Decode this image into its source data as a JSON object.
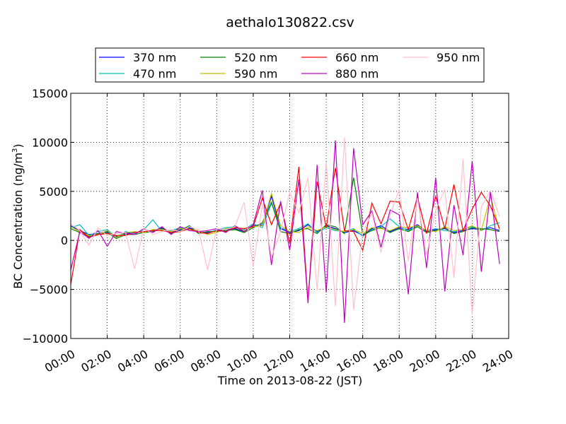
{
  "chart_data": {
    "type": "line",
    "title": "aethalo130822.csv",
    "xlabel": "Time on 2013-08-22 (JST)",
    "ylabel": "BC Concentration (ng/m",
    "ylabel_superscript": "3",
    "ylabel_suffix": ")",
    "xlim": [
      0,
      24
    ],
    "ylim": [
      -10000,
      15000
    ],
    "x_unit": "hours",
    "x_ticks": [
      0,
      2,
      4,
      6,
      8,
      10,
      12,
      14,
      16,
      18,
      20,
      22,
      24
    ],
    "x_tick_labels": [
      "00:00",
      "02:00",
      "04:00",
      "06:00",
      "08:00",
      "10:00",
      "12:00",
      "14:00",
      "16:00",
      "18:00",
      "20:00",
      "22:00",
      "24:00"
    ],
    "y_ticks": [
      -10000,
      -5000,
      0,
      5000,
      10000,
      15000
    ],
    "y_tick_labels": [
      "−10000",
      "−5000",
      "0",
      "5000",
      "10000",
      "15000"
    ],
    "grid": true,
    "legend_position": "top",
    "series": [
      {
        "name": "370 nm",
        "color": "#0000ff"
      },
      {
        "name": "470 nm",
        "color": "#00bfbf"
      },
      {
        "name": "520 nm",
        "color": "#008000"
      },
      {
        "name": "590 nm",
        "color": "#bfbf00"
      },
      {
        "name": "660 nm",
        "color": "#ff0000"
      },
      {
        "name": "880 nm",
        "color": "#bf00bf"
      },
      {
        "name": "950 nm",
        "color": "#ffc0cb"
      }
    ],
    "x": [
      0.0,
      0.5,
      1.0,
      1.5,
      2.0,
      2.5,
      3.0,
      3.5,
      4.0,
      4.5,
      5.0,
      5.5,
      6.0,
      6.5,
      7.0,
      7.5,
      8.0,
      8.5,
      9.0,
      9.5,
      10.0,
      10.5,
      11.0,
      11.5,
      12.0,
      12.5,
      13.0,
      13.5,
      14.0,
      14.5,
      15.0,
      15.5,
      16.0,
      16.5,
      17.0,
      17.5,
      18.0,
      18.5,
      19.0,
      19.5,
      20.0,
      20.5,
      21.0,
      21.5,
      22.0,
      22.5,
      23.0,
      23.5
    ],
    "series_values": [
      [
        1500,
        1000,
        600,
        700,
        900,
        400,
        700,
        800,
        900,
        1000,
        1200,
        800,
        1100,
        1300,
        900,
        800,
        1000,
        1100,
        1200,
        900,
        1500,
        1600,
        4500,
        1200,
        800,
        1000,
        1600,
        900,
        1500,
        1200,
        800,
        1000,
        500,
        1200,
        1500,
        900,
        1300,
        1100,
        1600,
        900,
        1100,
        1200,
        800,
        1000,
        1200,
        1100,
        1300,
        1000
      ],
      [
        1300,
        1600,
        500,
        900,
        1100,
        300,
        900,
        700,
        1100,
        2100,
        900,
        1000,
        1300,
        1200,
        800,
        700,
        1100,
        1300,
        1400,
        1100,
        1700,
        1300,
        3800,
        1300,
        900,
        1200,
        1700,
        800,
        1300,
        1000,
        900,
        1200,
        400,
        1100,
        1400,
        2200,
        1400,
        1000,
        1500,
        1000,
        1200,
        1000,
        900,
        1100,
        1400,
        1000,
        1500,
        1800
      ],
      [
        1200,
        800,
        400,
        700,
        800,
        200,
        600,
        600,
        800,
        900,
        1300,
        700,
        1000,
        1500,
        700,
        900,
        900,
        1000,
        1100,
        800,
        1300,
        1800,
        3900,
        900,
        700,
        1100,
        1200,
        700,
        1600,
        1400,
        700,
        6400,
        600,
        1000,
        1300,
        800,
        1200,
        900,
        1400,
        800,
        1000,
        1300,
        700,
        900,
        1300,
        1200,
        1100,
        900
      ],
      [
        1400,
        900,
        500,
        600,
        1000,
        300,
        800,
        900,
        800,
        1100,
        1100,
        900,
        1200,
        1100,
        1000,
        600,
        800,
        1200,
        1300,
        1000,
        1400,
        1500,
        4800,
        1500,
        900,
        800,
        1400,
        1000,
        1400,
        1100,
        900,
        1100,
        700,
        1300,
        1200,
        1000,
        1400,
        1300,
        1500,
        1000,
        900,
        1400,
        1000,
        1100,
        1500,
        1000,
        4500,
        1000
      ],
      [
        -4500,
        1100,
        300,
        600,
        700,
        500,
        500,
        800,
        900,
        1000,
        1000,
        800,
        900,
        1200,
        800,
        700,
        1000,
        900,
        1300,
        1200,
        1400,
        4300,
        1600,
        3800,
        -300,
        7500,
        -6200,
        6000,
        1300,
        7400,
        1000,
        900,
        -1000,
        3800,
        1700,
        4000,
        3900,
        1100,
        4400,
        700,
        4500,
        1200,
        5700,
        1000,
        3200,
        4900,
        3500,
        1200
      ],
      [
        -3000,
        900,
        200,
        1000,
        -600,
        900,
        700,
        600,
        1200,
        800,
        1400,
        600,
        1400,
        1000,
        900,
        1000,
        1200,
        800,
        1500,
        900,
        1600,
        5100,
        -2500,
        4000,
        -1000,
        6200,
        -6400,
        7700,
        -5300,
        10200,
        -8400,
        9400,
        1600,
        3000,
        -700,
        3100,
        2600,
        -5500,
        4900,
        -2800,
        6400,
        -5200,
        3600,
        -1500,
        8100,
        -3200,
        5000,
        -2400
      ],
      [
        1700,
        1000,
        -500,
        1300,
        500,
        700,
        800,
        -2900,
        1300,
        600,
        900,
        1100,
        900,
        1400,
        1100,
        -3000,
        1200,
        1100,
        1400,
        3900,
        -2600,
        3700,
        -1700,
        900,
        4900,
        2800,
        6400,
        -5100,
        8000,
        -6700,
        10500,
        -7100,
        800,
        2800,
        -1200,
        2600,
        5200,
        -2100,
        4300,
        -1500,
        3100,
        5200,
        -3800,
        8300,
        -7600,
        3400,
        5100,
        2400
      ]
    ]
  }
}
